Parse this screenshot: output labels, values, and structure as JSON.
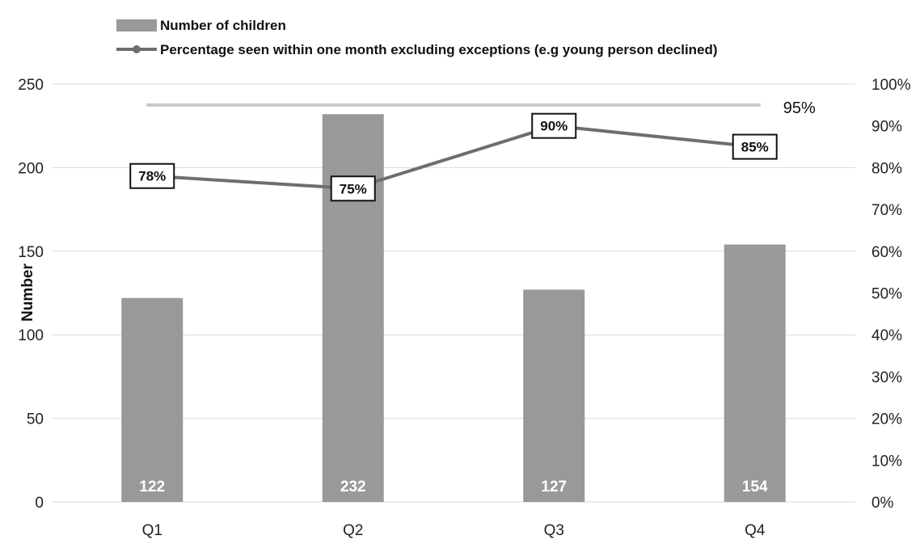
{
  "chart_data": {
    "type": "bar",
    "categories": [
      "Q1",
      "Q2",
      "Q3",
      "Q4"
    ],
    "ylabel": "Number",
    "ylim": [
      0,
      250
    ],
    "y_ticks": [
      "0",
      "50",
      "100",
      "150",
      "200",
      "250"
    ],
    "y2lim": [
      0,
      100
    ],
    "y2_ticks": [
      "0%",
      "10%",
      "20%",
      "30%",
      "40%",
      "50%",
      "60%",
      "70%",
      "80%",
      "90%",
      "100%"
    ],
    "grid": true,
    "legend": "top-left",
    "series": [
      {
        "name": "Number of children",
        "type": "bar",
        "axis": "left",
        "values": [
          122,
          232,
          127,
          154
        ],
        "labels": [
          "122",
          "232",
          "127",
          "154"
        ],
        "color": "#999999"
      },
      {
        "name": "Percentage seen within one month excluding exceptions (e.g young person declined)",
        "type": "line",
        "axis": "right",
        "values": [
          78,
          75,
          90,
          85
        ],
        "labels": [
          "78%",
          "75%",
          "90%",
          "85%"
        ],
        "color": "#6e6e6e"
      }
    ],
    "target": {
      "value": 95,
      "label": "95%",
      "color": "#c8c8c8"
    }
  }
}
